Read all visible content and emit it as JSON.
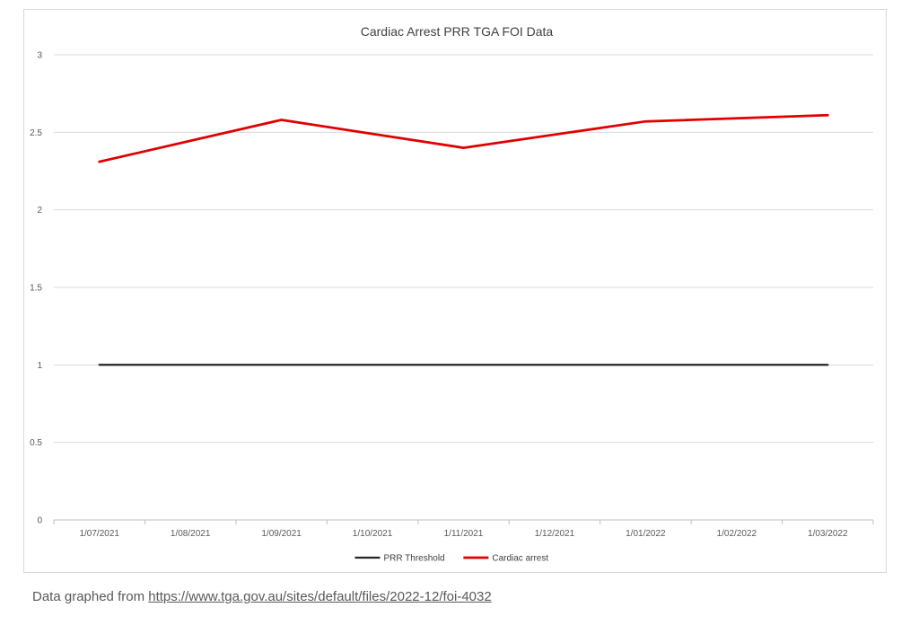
{
  "chart_data": {
    "type": "line",
    "title": "Cardiac Arrest PRR TGA FOI Data",
    "xlabel": "",
    "ylabel": "",
    "categories": [
      "1/07/2021",
      "1/08/2021",
      "1/09/2021",
      "1/10/2021",
      "1/11/2021",
      "1/12/2021",
      "1/01/2022",
      "1/02/2022",
      "1/03/2022"
    ],
    "ylim": [
      0,
      3
    ],
    "yticks": [
      "0",
      "0.5",
      "1",
      "1.5",
      "2",
      "2.5",
      "3"
    ],
    "grid": true,
    "legend_position": "bottom",
    "series": [
      {
        "name": "PRR Threshold",
        "color": "#262626",
        "points": [
          {
            "x": "1/07/2021",
            "y": 1
          },
          {
            "x": "1/03/2022",
            "y": 1
          }
        ]
      },
      {
        "name": "Cardiac arrest",
        "color": "#e00000",
        "points": [
          {
            "x": "1/07/2021",
            "y": 2.31
          },
          {
            "x": "1/09/2021",
            "y": 2.58
          },
          {
            "x": "1/11/2021",
            "y": 2.4
          },
          {
            "x": "1/01/2022",
            "y": 2.57
          },
          {
            "x": "1/03/2022",
            "y": 2.61
          }
        ]
      }
    ]
  },
  "caption": {
    "prefix": "Data graphed from ",
    "link_text": "https://www.tga.gov.au/sites/default/files/2022-12/foi-4032"
  }
}
